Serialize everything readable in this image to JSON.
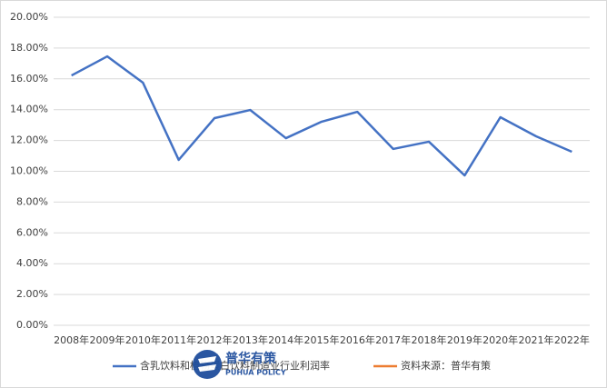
{
  "chart_data": {
    "type": "line",
    "categories": [
      "2008年",
      "2009年",
      "2010年",
      "2011年",
      "2012年",
      "2013年",
      "2014年",
      "2015年",
      "2016年",
      "2017年",
      "2018年",
      "2019年",
      "2020年",
      "2021年",
      "2022年"
    ],
    "series": [
      {
        "name": "含乳饮料和植物蛋白饮料制造业行业利润率",
        "color": "#4472c4",
        "values": [
          16.22,
          17.46,
          15.75,
          10.74,
          13.45,
          13.98,
          12.15,
          13.22,
          13.86,
          11.45,
          11.92,
          9.73,
          13.51,
          12.27,
          11.27
        ]
      },
      {
        "name": "资料来源：普华有策",
        "color": "#ed7d31",
        "values": [
          null,
          null,
          null,
          null,
          null,
          null,
          null,
          null,
          null,
          null,
          null,
          null,
          null,
          null,
          null
        ]
      }
    ],
    "ylim": [
      0,
      20
    ],
    "yticks": [
      {
        "value": 0,
        "label": "0.00%"
      },
      {
        "value": 2,
        "label": "2.00%"
      },
      {
        "value": 4,
        "label": "4.00%"
      },
      {
        "value": 6,
        "label": "6.00%"
      },
      {
        "value": 8,
        "label": "8.00%"
      },
      {
        "value": 10,
        "label": "10.00%"
      },
      {
        "value": 12,
        "label": "12.00%"
      },
      {
        "value": 14,
        "label": "14.00%"
      },
      {
        "value": 16,
        "label": "16.00%"
      },
      {
        "value": 18,
        "label": "18.00%"
      },
      {
        "value": 20,
        "label": "20.00%"
      }
    ],
    "grid": true,
    "legend": "bottom",
    "watermark": {
      "title": "普华有策",
      "subtitle": "PUHUA POLICY"
    }
  }
}
